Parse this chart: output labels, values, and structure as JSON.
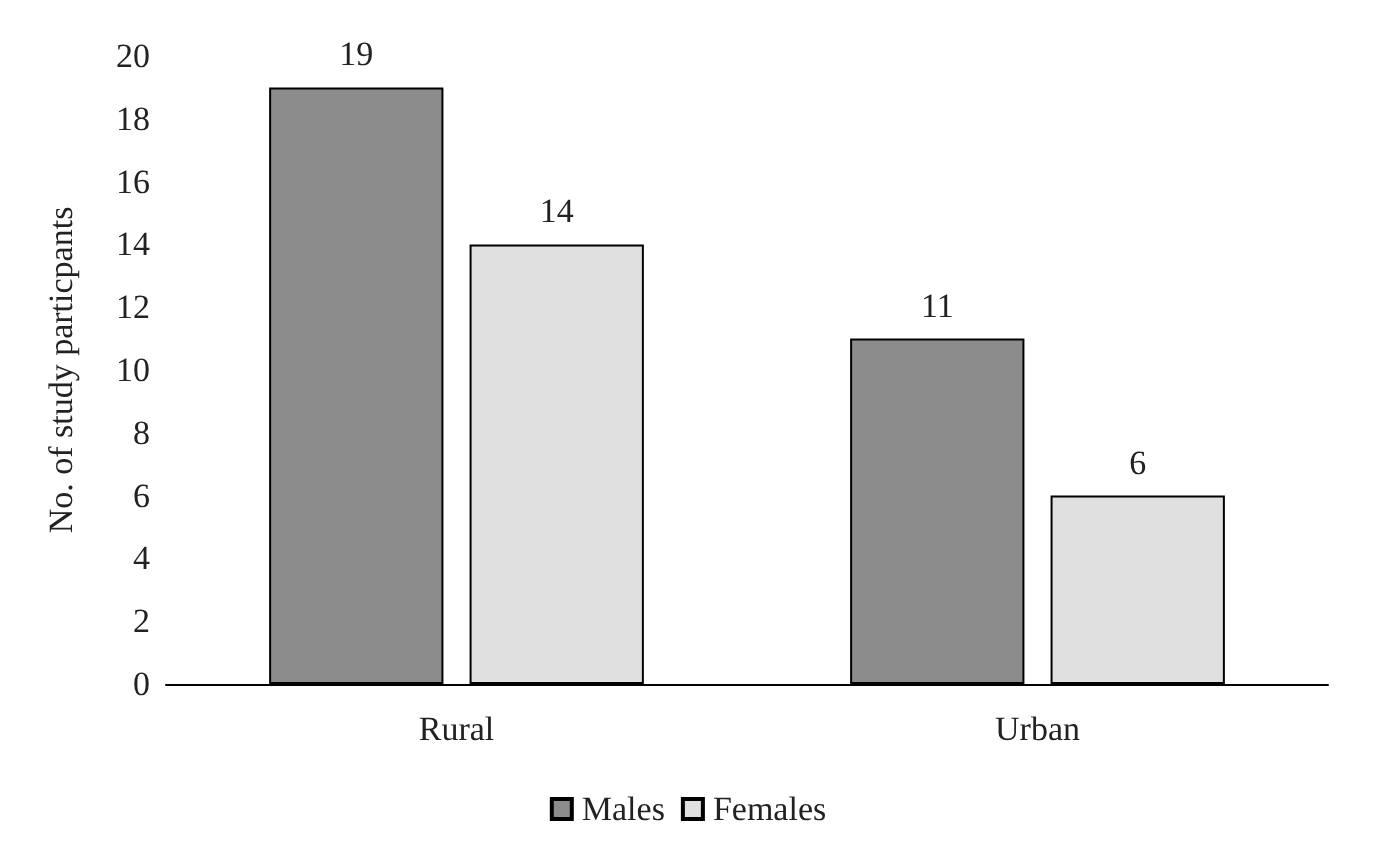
{
  "chart_data": {
    "type": "bar",
    "ylabel": "No. of study particpants",
    "categories": [
      "Rural",
      "Urban"
    ],
    "series": [
      {
        "name": "Males",
        "color": "#8c8c8c",
        "values": [
          19,
          11
        ]
      },
      {
        "name": "Females",
        "color": "#e0e0e0",
        "values": [
          14,
          6
        ]
      }
    ],
    "ylim": [
      0,
      20
    ],
    "yticks": [
      0,
      2,
      4,
      6,
      8,
      10,
      12,
      14,
      16,
      18,
      20
    ],
    "grid": false,
    "legend": "bottom",
    "data_labels": true
  }
}
